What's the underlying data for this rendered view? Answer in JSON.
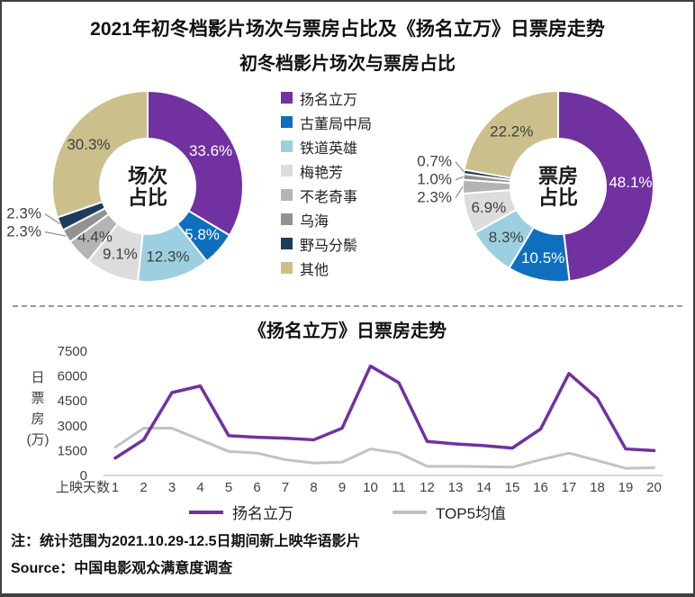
{
  "window": {
    "title": "2021年初冬档影片场次与票房占比及《扬名立万》日票房走势",
    "subtitle": "初冬档影片场次与票房占比"
  },
  "films": [
    {
      "name": "扬名立万",
      "color": "#7131A1",
      "label_color": "#ffffff"
    },
    {
      "name": "古董局中局",
      "color": "#0F6FBE",
      "label_color": "#ffffff"
    },
    {
      "name": "铁道英雄",
      "color": "#9CCFE0",
      "label_color": "#404040"
    },
    {
      "name": "梅艳芳",
      "color": "#DCDCDC",
      "label_color": "#404040"
    },
    {
      "name": "不老奇事",
      "color": "#B4B4B4",
      "label_color": "#404040"
    },
    {
      "name": "乌海",
      "color": "#929292",
      "label_color": "#404040"
    },
    {
      "name": "野马分鬃",
      "color": "#1F3B5C",
      "label_color": "#ffffff"
    },
    {
      "name": "其他",
      "color": "#CBBF8C",
      "label_color": "#404040"
    }
  ],
  "chart_data": [
    {
      "type": "pie",
      "title": "场次占比",
      "center_label": [
        "场次",
        "占比"
      ],
      "labels": [
        "扬名立万",
        "古董局中局",
        "铁道英雄",
        "梅艳芳",
        "不老奇事",
        "乌海",
        "野马分鬃",
        "其他"
      ],
      "values": [
        33.6,
        5.8,
        12.3,
        9.1,
        4.4,
        2.3,
        2.3,
        30.3
      ],
      "unit": "%"
    },
    {
      "type": "pie",
      "title": "票房占比",
      "center_label": [
        "票房",
        "占比"
      ],
      "labels": [
        "扬名立万",
        "古董局中局",
        "铁道英雄",
        "梅艳芳",
        "不老奇事",
        "乌海",
        "野马分鬃",
        "其他"
      ],
      "values": [
        48.1,
        10.5,
        8.3,
        6.9,
        2.3,
        1.0,
        0.7,
        22.2
      ],
      "unit": "%"
    },
    {
      "type": "line",
      "title": "《扬名立万》日票房走势",
      "xlabel": "上映天数",
      "ylabel": [
        "日",
        "票",
        "房",
        "(万)"
      ],
      "x": [
        1,
        2,
        3,
        4,
        5,
        6,
        7,
        8,
        9,
        10,
        11,
        12,
        13,
        14,
        15,
        16,
        17,
        18,
        19,
        20
      ],
      "ylim": [
        0,
        7500
      ],
      "yticks": [
        0,
        1500,
        3000,
        4500,
        6000,
        7500
      ],
      "grid": false,
      "legend_position": "bottom",
      "series": [
        {
          "name": "扬名立万",
          "color": "#7131A1",
          "values": [
            1050,
            2150,
            5000,
            5400,
            2400,
            2300,
            2250,
            2150,
            2850,
            6600,
            5600,
            2050,
            1900,
            1800,
            1650,
            2800,
            6150,
            4650,
            1600,
            1500
          ]
        },
        {
          "name": "TOP5均值",
          "color": "#C2C2C2",
          "values": [
            1700,
            2850,
            2850,
            2150,
            1450,
            1350,
            950,
            750,
            800,
            1600,
            1350,
            550,
            550,
            530,
            500,
            950,
            1350,
            900,
            430,
            470
          ]
        }
      ]
    }
  ],
  "notes": {
    "note": "注：统计范围为2021.10.29-12.5日期间新上映华语影片",
    "source": "Source：中国电影观众满意度调查"
  }
}
